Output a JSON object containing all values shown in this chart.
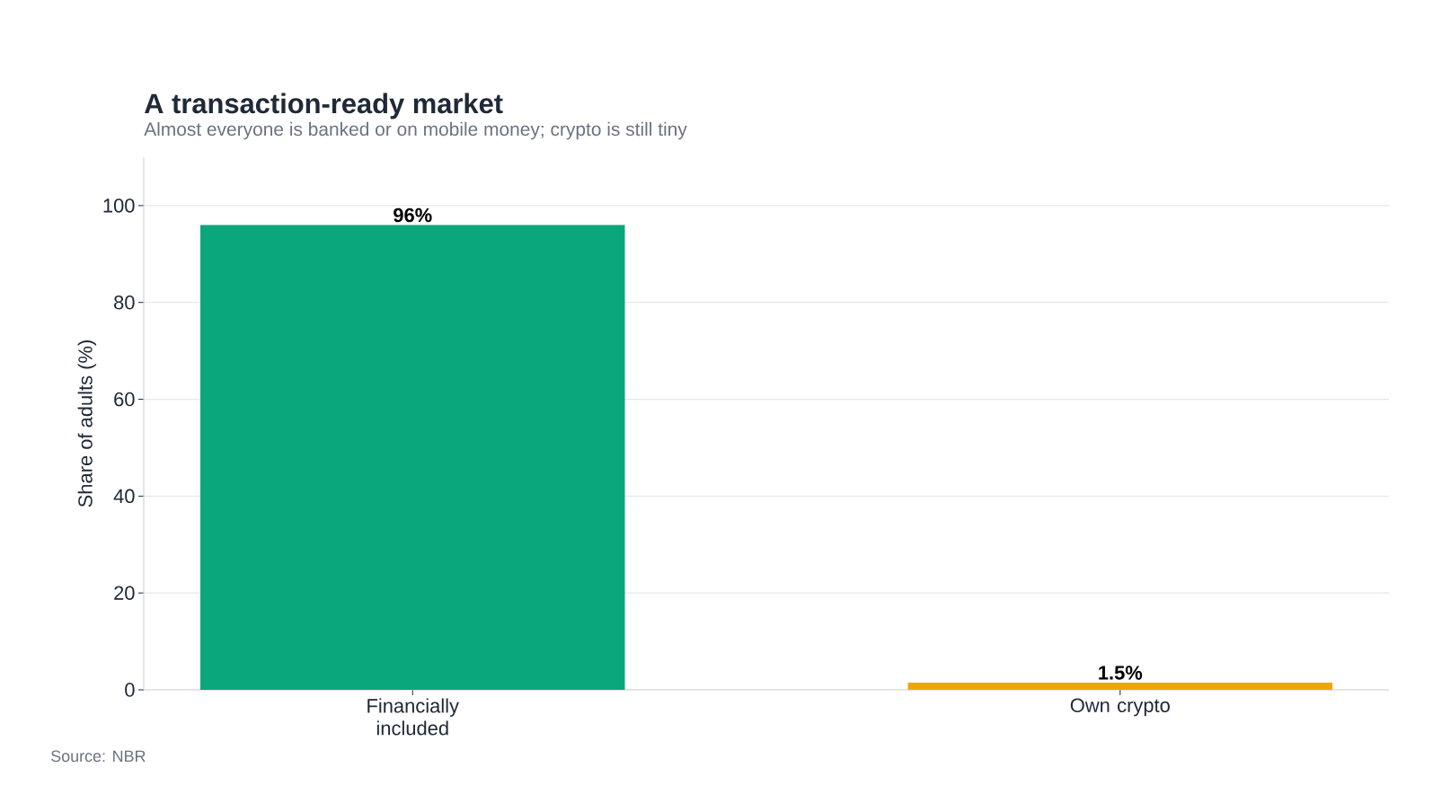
{
  "chart_data": {
    "type": "bar",
    "title": "A transaction-ready market",
    "subtitle": "Almost everyone is banked or on mobile money; crypto is still tiny",
    "ylabel": "Share of adults (%)",
    "categories": [
      "Financially included",
      "Own crypto"
    ],
    "values": [
      96,
      1.5
    ],
    "colors": [
      "#0aa67c",
      "#f0a500"
    ],
    "value_labels": [
      "96%",
      "1.5%"
    ],
    "ylim": [
      0,
      110
    ],
    "yticks": [
      0,
      20,
      40,
      60,
      80,
      100
    ],
    "grid": "y",
    "annotations": [
      "Source: NBR"
    ]
  }
}
